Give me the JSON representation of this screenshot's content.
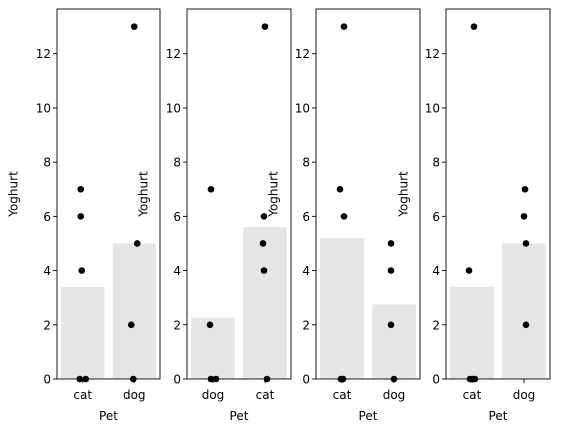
{
  "chart_data": [
    {
      "type": "bar",
      "categories": [
        "cat",
        "dog"
      ],
      "values": [
        3.4,
        5.0
      ],
      "points": [
        {
          "x": "cat",
          "y": 0
        },
        {
          "x": "cat",
          "y": 0
        },
        {
          "x": "cat",
          "y": 4
        },
        {
          "x": "cat",
          "y": 6
        },
        {
          "x": "cat",
          "y": 7
        },
        {
          "x": "dog",
          "y": 0
        },
        {
          "x": "dog",
          "y": 2
        },
        {
          "x": "dog",
          "y": 5
        },
        {
          "x": "dog",
          "y": 13
        }
      ],
      "xlabel": "Pet",
      "ylabel": "Yoghurt",
      "ylim": [
        0,
        13.65
      ],
      "yticks": [
        0,
        2,
        4,
        6,
        8,
        10,
        12
      ]
    },
    {
      "type": "bar",
      "categories": [
        "dog",
        "cat"
      ],
      "values": [
        2.25,
        5.6
      ],
      "points": [
        {
          "x": "dog",
          "y": 0
        },
        {
          "x": "dog",
          "y": 0
        },
        {
          "x": "dog",
          "y": 2
        },
        {
          "x": "dog",
          "y": 7
        },
        {
          "x": "cat",
          "y": 0
        },
        {
          "x": "cat",
          "y": 4
        },
        {
          "x": "cat",
          "y": 5
        },
        {
          "x": "cat",
          "y": 6
        },
        {
          "x": "cat",
          "y": 13
        }
      ],
      "xlabel": "Pet",
      "ylabel": "Yoghurt",
      "ylim": [
        0,
        13.65
      ],
      "yticks": [
        0,
        2,
        4,
        6,
        8,
        10,
        12
      ]
    },
    {
      "type": "bar",
      "categories": [
        "cat",
        "dog"
      ],
      "values": [
        5.2,
        2.75
      ],
      "points": [
        {
          "x": "cat",
          "y": 0
        },
        {
          "x": "cat",
          "y": 0
        },
        {
          "x": "cat",
          "y": 6
        },
        {
          "x": "cat",
          "y": 7
        },
        {
          "x": "cat",
          "y": 13
        },
        {
          "x": "dog",
          "y": 0
        },
        {
          "x": "dog",
          "y": 2
        },
        {
          "x": "dog",
          "y": 4
        },
        {
          "x": "dog",
          "y": 5
        }
      ],
      "xlabel": "Pet",
      "ylabel": "Yoghurt",
      "ylim": [
        0,
        13.65
      ],
      "yticks": [
        0,
        2,
        4,
        6,
        8,
        10,
        12
      ]
    },
    {
      "type": "bar",
      "categories": [
        "cat",
        "dog"
      ],
      "values": [
        3.4,
        5.0
      ],
      "points": [
        {
          "x": "cat",
          "y": 0
        },
        {
          "x": "cat",
          "y": 0
        },
        {
          "x": "cat",
          "y": 0
        },
        {
          "x": "cat",
          "y": 4
        },
        {
          "x": "cat",
          "y": 13
        },
        {
          "x": "dog",
          "y": 2
        },
        {
          "x": "dog",
          "y": 5
        },
        {
          "x": "dog",
          "y": 6
        },
        {
          "x": "dog",
          "y": 7
        }
      ],
      "xlabel": "Pet",
      "ylabel": "Yoghurt",
      "ylim": [
        0,
        13.65
      ],
      "yticks": [
        0,
        2,
        4,
        6,
        8,
        10,
        12
      ]
    }
  ],
  "colors": {
    "bar": "#e5e5e5",
    "point": "#000000",
    "axis": "#000000"
  }
}
